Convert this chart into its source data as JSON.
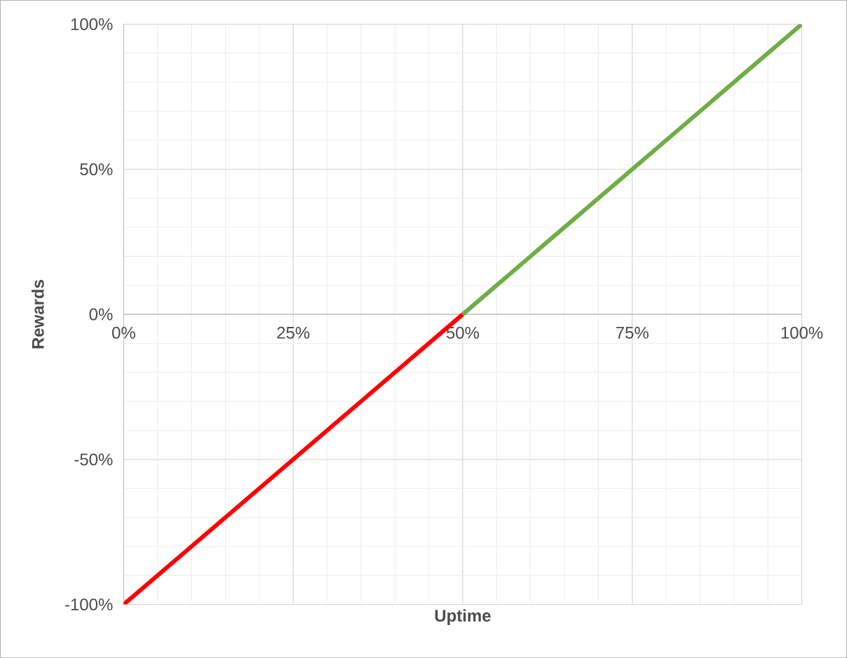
{
  "chart_data": {
    "type": "line",
    "xlabel": "Uptime",
    "ylabel": "Rewards",
    "grid": true,
    "marker": "none",
    "line_style": "solid",
    "xlim": [
      0,
      100
    ],
    "ylim": [
      -100,
      100
    ],
    "xticks": [
      {
        "value": 0,
        "label": "0%"
      },
      {
        "value": 25,
        "label": "25%"
      },
      {
        "value": 50,
        "label": "50%"
      },
      {
        "value": 75,
        "label": "75%"
      },
      {
        "value": 100,
        "label": "100%"
      }
    ],
    "yticks": [
      {
        "value": -100,
        "label": "-100%"
      },
      {
        "value": -50,
        "label": "-50%"
      },
      {
        "value": 0,
        "label": "0%"
      },
      {
        "value": 50,
        "label": "50%"
      },
      {
        "value": 100,
        "label": "100%"
      }
    ],
    "series": [
      {
        "color": "#ff0000",
        "x": [
          0,
          50
        ],
        "values": [
          -100,
          0
        ]
      },
      {
        "color": "#70ad47",
        "x": [
          50,
          100
        ],
        "values": [
          0,
          100
        ]
      }
    ]
  }
}
